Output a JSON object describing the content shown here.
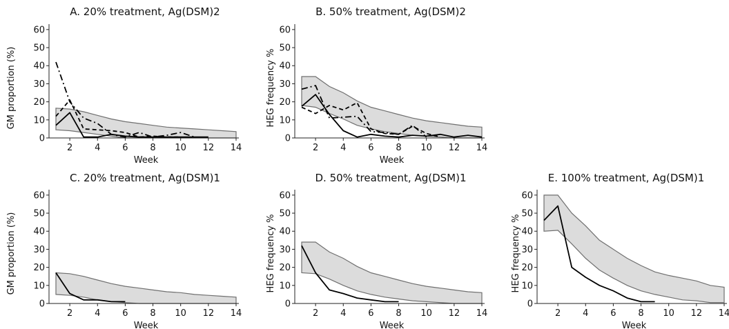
{
  "chart_data": [
    {
      "id": "A",
      "type": "line",
      "title": "A. 20% treatment, Ag(DSM)2",
      "xlabel": "Week",
      "ylabel": "GM proportion (%)",
      "xlim": [
        0.5,
        14.2
      ],
      "ylim": [
        0,
        63
      ],
      "xticks": [
        2,
        4,
        6,
        8,
        10,
        12,
        14
      ],
      "yticks": [
        0,
        10,
        20,
        30,
        40,
        50,
        60
      ],
      "band": {
        "x": [
          1,
          2,
          3,
          4,
          5,
          6,
          7,
          8,
          9,
          10,
          11,
          12,
          13,
          14
        ],
        "upper": [
          16.5,
          16,
          14.5,
          12.5,
          10.5,
          9,
          8,
          7,
          6,
          5.5,
          5,
          4.5,
          4,
          3.5
        ],
        "lower": [
          4.5,
          4,
          3,
          2,
          1,
          0,
          0,
          0,
          0,
          0,
          0,
          0,
          0,
          0
        ]
      },
      "series": [
        {
          "dash": "solid",
          "x": [
            1,
            2,
            3,
            4,
            5,
            6,
            7,
            8,
            9,
            10,
            11,
            12
          ],
          "values": [
            7,
            14,
            0.5,
            0.5,
            2,
            1,
            0.5,
            0.5,
            0.5,
            0.5,
            0.5,
            0.5
          ]
        },
        {
          "dash": "dashed",
          "x": [
            1,
            2,
            3,
            4,
            5,
            6,
            7,
            8,
            9,
            10
          ],
          "values": [
            12,
            21,
            5,
            4.5,
            4,
            3,
            0.5,
            1,
            0.5,
            0.5
          ]
        },
        {
          "dash": "dashdot",
          "x": [
            1,
            2,
            3,
            4,
            5,
            6,
            7,
            8,
            9,
            10,
            11
          ],
          "values": [
            42,
            20,
            11,
            8,
            2,
            0.5,
            3,
            0.5,
            1.5,
            3,
            0.5
          ]
        }
      ]
    },
    {
      "id": "B",
      "type": "line",
      "title": "B. 50% treatment, Ag(DSM)2",
      "xlabel": "Week",
      "ylabel": "HEG frequency %",
      "xlim": [
        0.5,
        14.2
      ],
      "ylim": [
        0,
        63
      ],
      "xticks": [
        2,
        4,
        6,
        8,
        10,
        12,
        14
      ],
      "yticks": [
        0,
        10,
        20,
        30,
        40,
        50,
        60
      ],
      "band": {
        "x": [
          1,
          2,
          3,
          4,
          5,
          6,
          7,
          8,
          9,
          10,
          11,
          12,
          13,
          14
        ],
        "upper": [
          34,
          34,
          28.5,
          25,
          20.5,
          17,
          15,
          13,
          11,
          9.5,
          8.5,
          7.5,
          6.5,
          6
        ],
        "lower": [
          18,
          17,
          13.5,
          10.5,
          7,
          5,
          3.5,
          2.5,
          1.5,
          1,
          0.5,
          0,
          0,
          0
        ]
      },
      "series": [
        {
          "dash": "solid",
          "x": [
            1,
            2,
            3,
            4,
            5,
            6,
            7,
            8,
            9,
            10,
            11,
            12,
            13,
            14
          ],
          "values": [
            17.5,
            24,
            13,
            4,
            0.5,
            2,
            1,
            0.5,
            1.5,
            1,
            2,
            0.5,
            1.5,
            0.5
          ]
        },
        {
          "dash": "dashed",
          "x": [
            1,
            2,
            3,
            4,
            5,
            6,
            7,
            8,
            9,
            10,
            11
          ],
          "values": [
            17,
            13.5,
            18,
            15.5,
            19.5,
            5,
            2.5,
            2,
            6.5,
            2.5,
            0.5
          ]
        },
        {
          "dash": "dashdot",
          "x": [
            1,
            2,
            3,
            4,
            5,
            6,
            7,
            8,
            9,
            10
          ],
          "values": [
            27,
            29,
            11,
            11.5,
            12,
            3.5,
            3,
            2,
            7,
            0.5
          ]
        }
      ]
    },
    {
      "id": "C",
      "type": "line",
      "title": "C. 20% treatment, Ag(DSM)1",
      "xlabel": "Week",
      "ylabel": "GM proportion (%)",
      "xlim": [
        0.5,
        14.2
      ],
      "ylim": [
        0,
        63
      ],
      "xticks": [
        2,
        4,
        6,
        8,
        10,
        12,
        14
      ],
      "yticks": [
        0,
        10,
        20,
        30,
        40,
        50,
        60
      ],
      "band": {
        "x": [
          1,
          2,
          3,
          4,
          5,
          6,
          7,
          8,
          9,
          10,
          11,
          12,
          13,
          14
        ],
        "upper": [
          17,
          16.5,
          15,
          13,
          11,
          9.5,
          8.5,
          7.5,
          6.5,
          6,
          5,
          4.5,
          4,
          3.5
        ],
        "lower": [
          5,
          4.5,
          3.5,
          2,
          1,
          0.5,
          0,
          0,
          0,
          0,
          0,
          0,
          0,
          0
        ]
      },
      "series": [
        {
          "dash": "solid",
          "x": [
            1,
            2,
            3,
            4,
            5,
            6
          ],
          "values": [
            17,
            5.5,
            2,
            2,
            1,
            1
          ]
        }
      ]
    },
    {
      "id": "D",
      "type": "line",
      "title": "D. 50% treatment, Ag(DSM)1",
      "xlabel": "Week",
      "ylabel": "HEG frequency %",
      "xlim": [
        0.5,
        14.2
      ],
      "ylim": [
        0,
        63
      ],
      "xticks": [
        2,
        4,
        6,
        8,
        10,
        12,
        14
      ],
      "yticks": [
        0,
        10,
        20,
        30,
        40,
        50,
        60
      ],
      "band": {
        "x": [
          1,
          2,
          3,
          4,
          5,
          6,
          7,
          8,
          9,
          10,
          11,
          12,
          13,
          14
        ],
        "upper": [
          34,
          34,
          28.5,
          25,
          20.5,
          17,
          15,
          13,
          11,
          9.5,
          8.5,
          7.5,
          6.5,
          6
        ],
        "lower": [
          17,
          16.5,
          13.5,
          10,
          7,
          5,
          3.5,
          2.5,
          1.5,
          1,
          0.5,
          0,
          0,
          0
        ]
      },
      "series": [
        {
          "dash": "solid",
          "x": [
            1,
            2,
            3,
            4,
            5,
            6,
            7,
            8
          ],
          "values": [
            32,
            17,
            7.5,
            5.5,
            3,
            2,
            1,
            1
          ]
        }
      ]
    },
    {
      "id": "E",
      "type": "line",
      "title": "E. 100% treatment, Ag(DSM)1",
      "xlabel": "Week",
      "ylabel": "HEG frequency %",
      "xlim": [
        0.5,
        14.2
      ],
      "ylim": [
        0,
        63
      ],
      "xticks": [
        2,
        4,
        6,
        8,
        10,
        12,
        14
      ],
      "yticks": [
        0,
        10,
        20,
        30,
        40,
        50,
        60
      ],
      "band": {
        "x": [
          1,
          2,
          3,
          4,
          5,
          6,
          7,
          8,
          9,
          10,
          11,
          12,
          13,
          14
        ],
        "upper": [
          60,
          60,
          50,
          43,
          35,
          30,
          25,
          21,
          17.5,
          15.5,
          14,
          12.5,
          10,
          9
        ],
        "lower": [
          40,
          40.5,
          33,
          25,
          18.5,
          14,
          10,
          7,
          5,
          3.5,
          2,
          1.5,
          0.5,
          0.5
        ]
      },
      "series": [
        {
          "dash": "solid",
          "x": [
            1,
            2,
            3,
            4,
            5,
            6,
            7,
            8,
            9
          ],
          "values": [
            46,
            54,
            20,
            14.5,
            10,
            7,
            3,
            1,
            1
          ]
        }
      ]
    }
  ]
}
